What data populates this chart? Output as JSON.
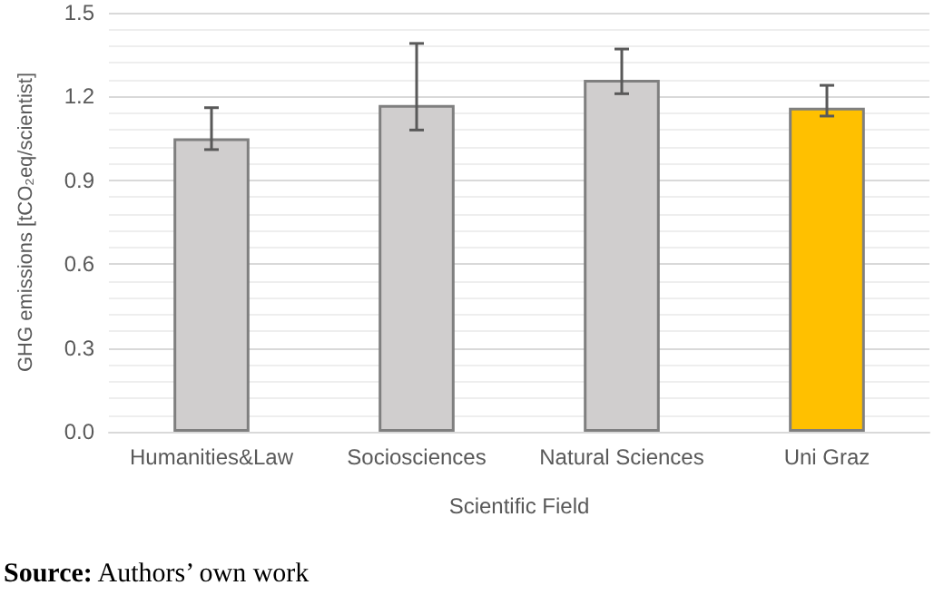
{
  "chart_data": {
    "type": "bar",
    "xlabel": "Scientific Field",
    "ylabel": "GHG emissions [tCO₂eq/scientist]",
    "categories": [
      "Humanities&Law",
      "Sociosciences",
      "Natural Sciences",
      "Uni Graz"
    ],
    "values": [
      1.05,
      1.17,
      1.26,
      1.16
    ],
    "colors": [
      "#d0cece",
      "#d0cece",
      "#d0cece",
      "#ffc000"
    ],
    "errors": [
      [
        1.01,
        1.16
      ],
      [
        1.08,
        1.39
      ],
      [
        1.21,
        1.37
      ],
      [
        1.13,
        1.24
      ]
    ],
    "ylim": [
      0,
      1.5
    ],
    "yticks": [
      {
        "value": 0,
        "label": "0.0"
      },
      {
        "value": 0.3,
        "label": "0.3"
      },
      {
        "value": 0.6,
        "label": "0.6"
      },
      {
        "value": 0.9,
        "label": "0.9"
      },
      {
        "value": 1.2,
        "label": "1.2"
      },
      {
        "value": 1.5,
        "label": "1.5"
      }
    ],
    "grid": true,
    "annotations": [
      "Source: Authors’ own work"
    ]
  }
}
